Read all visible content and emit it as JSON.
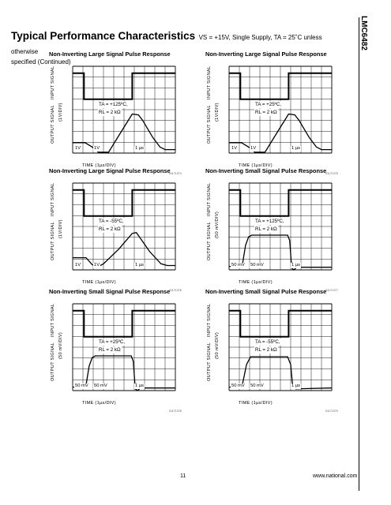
{
  "header": {
    "title": "Typical Performance Characteristics",
    "conditions": "VS = +15V, Single Supply, TA = 25˚C unless otherwise",
    "subtitle": "specified (Continued)"
  },
  "side_tab": "LMC6482",
  "footer": {
    "page": "11",
    "url": "www.national.com"
  },
  "plots": [
    {
      "title": "Non-Inverting Large Signal Pulse Response",
      "temp": "TA = +125ºC,",
      "rl": "RL = 2 kΩ",
      "ylabel_in": "INPUT SIGNAL",
      "ylabel_out": "OUTPUT SIGNAL",
      "vdiv": "(1V/DIV)",
      "scale_l": "1V",
      "scale_m": "1V",
      "scale_r": "1 µs",
      "xlabel": "TIME (1µs/DIV)",
      "code": "01171374"
    },
    {
      "title": "Non-Inverting Large Signal Pulse Response",
      "temp": "TA = +25ºC,",
      "rl": "RL = 2 kΩ",
      "ylabel_in": "INPUT SIGNAL",
      "ylabel_out": "OUTPUT SIGNAL",
      "vdiv": "(1V/DIV)",
      "scale_l": "1V",
      "scale_m": "1V",
      "scale_r": "1 µs",
      "xlabel": "TIME (1µs/DIV)",
      "code": "01171375"
    },
    {
      "title": "Non-Inverting Large Signal Pulse Response",
      "temp": "TA = -55ºC,",
      "rl": "RL = 2 kΩ",
      "ylabel_in": "INPUT SIGNAL",
      "ylabel_out": "OUTPUT SIGNAL",
      "vdiv": "(1V/DIV)",
      "scale_l": "1V",
      "scale_m": "1V",
      "scale_r": "1 µs",
      "xlabel": "TIME (1µs/DIV)",
      "code": "01171376"
    },
    {
      "title": "Non-Inverting Small Signal Pulse Response",
      "temp": "TA = +125ºC,",
      "rl": "RL = 2 kΩ",
      "ylabel_in": "INPUT SIGNAL",
      "ylabel_out": "OUTPUT SIGNAL",
      "vdiv": "(50 mV/DIV)",
      "scale_l": "50 mV",
      "scale_m": "50 mV",
      "scale_r": "1 µs",
      "xlabel": "TIME (1µs/DIV)",
      "code": "01171377"
    },
    {
      "title": "Non-Inverting Small Signal Pulse Response",
      "temp": "TA = +25ºC,",
      "rl": "RL = 2 kΩ",
      "ylabel_in": "INPUT SIGNAL",
      "ylabel_out": "OUTPUT SIGNAL",
      "vdiv": "(50 mV/DIV)",
      "scale_l": "50 mV",
      "scale_m": "50 mV",
      "scale_r": "1 µs",
      "xlabel": "TIME (1µs/DIV)",
      "code": "01171378"
    },
    {
      "title": "Non-Inverting Small Signal Pulse Response",
      "temp": "TA = -55ºC,",
      "rl": "RL = 2 kΩ",
      "ylabel_in": "INPUT SIGNAL",
      "ylabel_out": "OUTPUT SIGNAL",
      "vdiv": "(50 mV/DIV)",
      "scale_l": "50 mV",
      "scale_m": "50 mV",
      "scale_r": "1 µs",
      "xlabel": "TIME (1µs/DIV)",
      "code": "01171379"
    }
  ]
}
